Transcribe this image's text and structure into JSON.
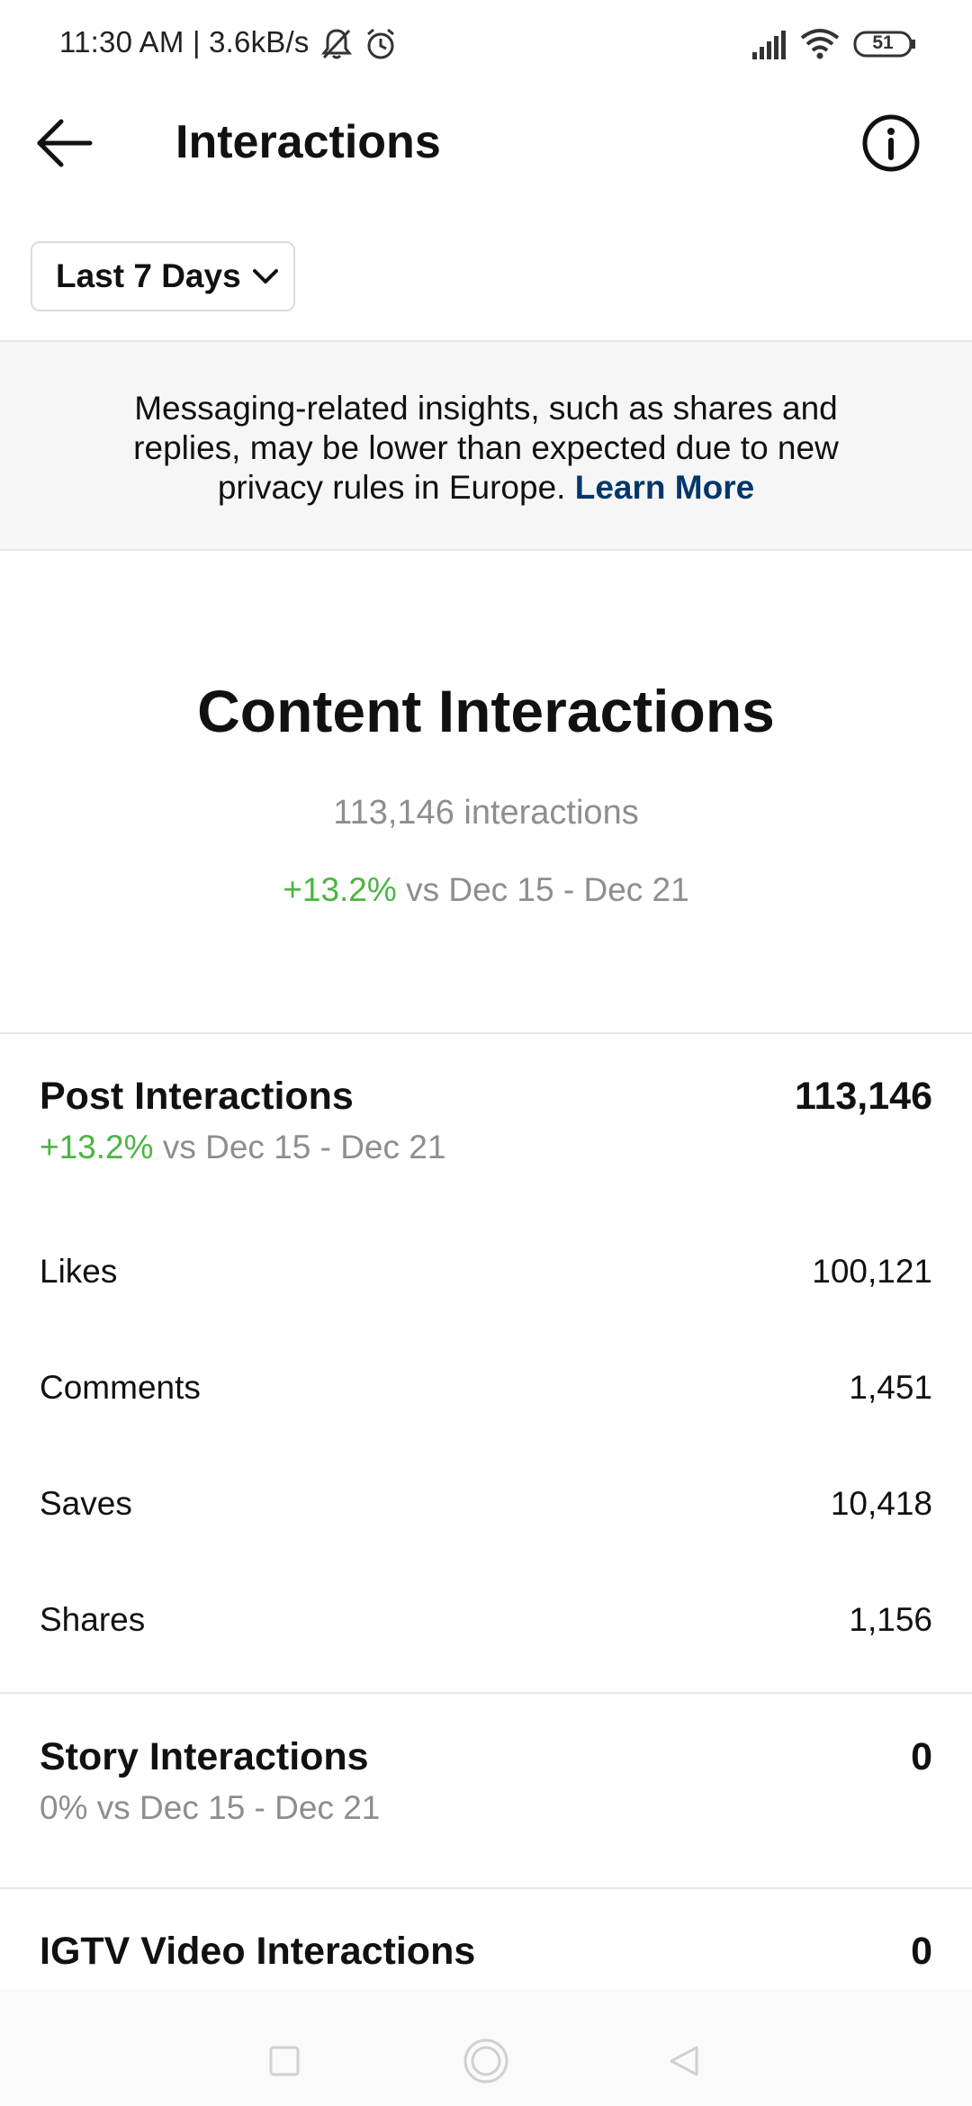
{
  "status_bar": {
    "time_speed": "11:30 AM | 3.6kB/s",
    "battery": "51",
    "icons": [
      "bell-muted-icon",
      "alarm-icon",
      "signal-icon",
      "wifi-icon",
      "battery-icon"
    ]
  },
  "header": {
    "title": "Interactions",
    "icons": [
      "back-arrow-icon",
      "info-icon"
    ]
  },
  "filter": {
    "range_label": "Last 7 Days"
  },
  "notice": {
    "text": "Messaging-related insights, such as shares and replies, may be lower than expected due to new privacy rules in Europe.",
    "link": "Learn More"
  },
  "content_interactions": {
    "title": "Content Interactions",
    "total": "113,146 interactions",
    "change": "+13.2%",
    "compare": "vs Dec 15 - Dec 21"
  },
  "post_interactions": {
    "label": "Post Interactions",
    "value": "113,146",
    "change": "+13.2%",
    "compare": "vs Dec 15 - Dec 21",
    "rows": [
      {
        "label": "Likes",
        "value": "100,121"
      },
      {
        "label": "Comments",
        "value": "1,451"
      },
      {
        "label": "Saves",
        "value": "10,418"
      },
      {
        "label": "Shares",
        "value": "1,156"
      }
    ]
  },
  "story_interactions": {
    "label": "Story Interactions",
    "value": "0",
    "sub": "0% vs Dec 15 - Dec 21"
  },
  "igtv_interactions": {
    "label": "IGTV Video Interactions",
    "value": "0"
  },
  "colors": {
    "positive": "#4bb543",
    "link": "#00376b",
    "muted": "#8e8e8e"
  }
}
